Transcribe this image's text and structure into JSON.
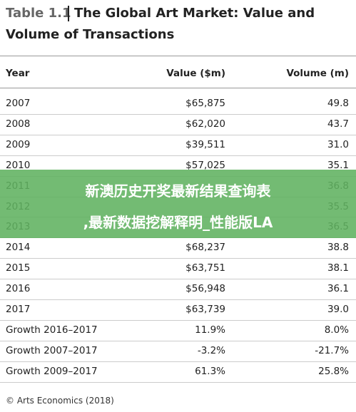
{
  "header": {
    "label": "Table 1.1",
    "title_line1": "The Global Art Market: Value and",
    "title_line2": "Volume of Transactions"
  },
  "table": {
    "columns": [
      "Year",
      "Value ($m)",
      "Volume (m)"
    ],
    "rows": [
      [
        "2007",
        "$65,875",
        "49.8"
      ],
      [
        "2008",
        "$62,020",
        "43.7"
      ],
      [
        "2009",
        "$39,511",
        "31.0"
      ],
      [
        "2010",
        "$57,025",
        "35.1"
      ],
      [
        "2011",
        null,
        "36.8"
      ],
      [
        "2012",
        null,
        "35.5"
      ],
      [
        "2013",
        null,
        "36.5"
      ],
      [
        "2014",
        "$68,237",
        "38.8"
      ],
      [
        "2015",
        "$63,751",
        "38.1"
      ],
      [
        "2016",
        "$56,948",
        "36.1"
      ],
      [
        "2017",
        "$63,739",
        "39.0"
      ],
      [
        "Growth 2016–2017",
        "11.9%",
        "8.0%"
      ],
      [
        "Growth 2007–2017",
        "-3.2%",
        "-21.7%"
      ],
      [
        "Growth 2009–2017",
        "61.3%",
        "25.8%"
      ]
    ]
  },
  "source": "© Arts Economics (2018)",
  "banner": {
    "line1": "新澳历史开奖最新结果查询表",
    "line2": ",最新数据挖解释明_性能版LA"
  }
}
